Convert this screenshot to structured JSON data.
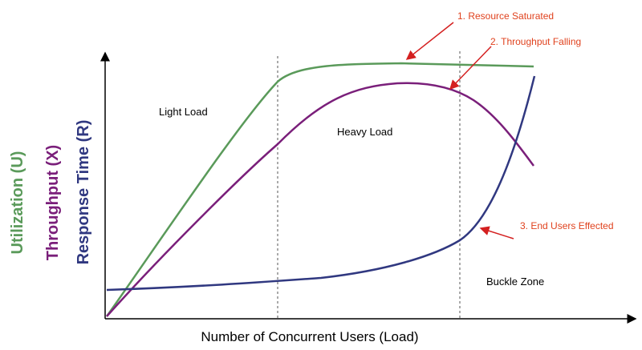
{
  "axes": {
    "x_label": "Number of  Concurrent Users (Load)",
    "y_labels": [
      "Utilization (U)",
      "Throughput (X)",
      "Response Time (R)"
    ]
  },
  "zones": [
    "Light Load",
    "Heavy Load",
    "Buckle Zone"
  ],
  "annotations": [
    "1. Resource Saturated",
    "2. Throughput Falling",
    "3. End Users Effected"
  ]
}
